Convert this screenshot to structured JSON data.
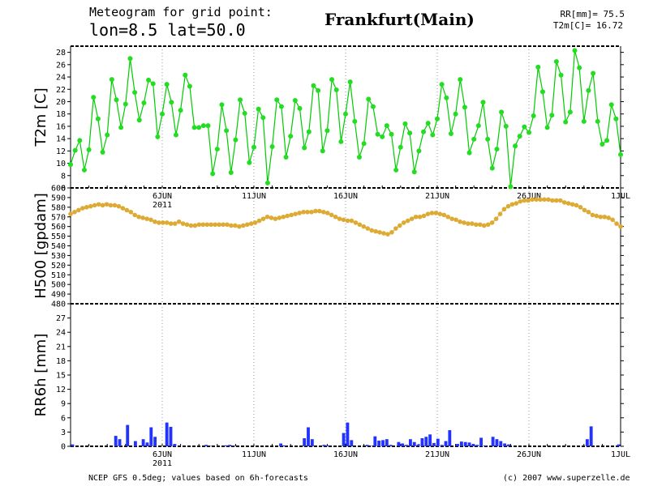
{
  "header": {
    "line1": "Meteogram for grid point:",
    "line2": "lon=8.5 lat=50.0",
    "city": "Frankfurt(Main)",
    "rr_total": "RR[mm]= 75.5",
    "t2m_mean": "T2m[C]= 16.72"
  },
  "footer": {
    "source": "NCEP GFS 0.5deg; values based on 6h-forecasts",
    "copyright": "(c) 2007 www.superzelle.de"
  },
  "x_axis": {
    "labels": [
      "6JUN",
      "11JUN",
      "16JUN",
      "21JUN",
      "26JUN",
      "1JUL"
    ],
    "year": "2011",
    "start_date": "2011-06-01"
  },
  "chart_data": [
    {
      "type": "line",
      "name": "t2m",
      "ylabel": "T2m [C]",
      "ylim": [
        6,
        29
      ],
      "yticks": [
        6,
        8,
        10,
        12,
        14,
        16,
        18,
        20,
        22,
        24,
        26,
        28
      ],
      "color": "#00cc00",
      "marker_color": "#22dd22",
      "values": [
        9.8,
        12.1,
        13.7,
        8.9,
        12.2,
        20.7,
        17.2,
        11.8,
        14.6,
        23.6,
        20.3,
        15.8,
        19.6,
        27,
        21.5,
        17.0,
        19.8,
        23.5,
        22.9,
        14.3,
        18.0,
        22.8,
        19.9,
        14.6,
        18.6,
        24.3,
        22.5,
        15.8,
        15.8,
        16.1,
        16.1,
        8.3,
        12.3,
        19.5,
        15.3,
        8.5,
        13.8,
        20.3,
        18.1,
        10.1,
        12.6,
        18.8,
        17.4,
        6.8,
        12.7,
        20.3,
        19.2,
        11.0,
        14.4,
        20.2,
        18.9,
        12.5,
        15.1,
        22.6,
        21.8,
        12.0,
        15.3,
        23.6,
        21.9,
        13.5,
        18.0,
        23.2,
        16.8,
        11.0,
        13.2,
        20.4,
        19.2,
        14.7,
        14.3,
        16.1,
        14.7,
        8.9,
        12.6,
        16.4,
        14.9,
        8.6,
        12.0,
        15.1,
        16.5,
        14.6,
        17.2,
        22.8,
        20.6,
        14.8,
        18.0,
        23.6,
        19.1,
        11.7,
        13.9,
        16.1,
        19.9,
        13.9,
        9.2,
        12.3,
        18.3,
        16.0,
        6.2,
        12.8,
        14.4,
        15.9,
        15.0,
        17.7,
        25.6,
        21.6,
        15.8,
        17.8,
        26.5,
        24.3,
        16.7,
        18.3,
        28.3,
        25.5,
        16.8,
        21.8,
        24.6,
        16.8,
        13.1,
        13.7,
        19.5,
        17.2,
        11.4
      ]
    },
    {
      "type": "line",
      "name": "h500",
      "ylabel": "H500 [gpdam]",
      "ylim": [
        480,
        600
      ],
      "yticks": [
        480,
        490,
        500,
        510,
        520,
        530,
        540,
        550,
        560,
        570,
        580,
        590,
        600
      ],
      "color": "#ddaa33",
      "values": [
        573,
        575,
        577,
        579,
        580,
        581,
        582,
        583,
        582,
        583,
        582,
        582,
        581,
        579,
        577,
        575,
        572,
        570,
        569,
        568,
        567,
        565,
        564,
        564,
        564,
        563,
        563,
        565,
        563,
        562,
        561,
        561,
        562,
        562,
        562,
        562,
        562,
        562,
        562,
        562,
        561,
        561,
        560,
        561,
        562,
        563,
        564,
        566,
        568,
        570,
        569,
        568,
        569,
        570,
        571,
        572,
        573,
        574,
        575,
        575,
        575,
        576,
        576,
        575,
        574,
        572,
        570,
        568,
        567,
        566,
        566,
        564,
        562,
        560,
        558,
        556,
        555,
        554,
        553,
        552,
        554,
        558,
        561,
        564,
        566,
        568,
        570,
        570,
        571,
        573,
        574,
        574,
        573,
        572,
        570,
        568,
        567,
        565,
        564,
        563,
        563,
        562,
        562,
        561,
        562,
        564,
        568,
        573,
        578,
        581,
        583,
        584,
        586,
        587,
        587,
        588,
        588,
        588,
        588,
        588,
        587,
        587,
        587,
        585,
        584,
        583,
        582,
        580,
        577,
        575,
        572,
        571,
        570,
        570,
        569,
        567,
        563,
        560
      ]
    },
    {
      "type": "bar",
      "name": "rr6h",
      "ylabel": "RR6h [mm]",
      "ylim": [
        0,
        30
      ],
      "yticks": [
        0,
        3,
        6,
        9,
        12,
        15,
        18,
        21,
        24,
        27
      ],
      "color": "#2233ff",
      "values": [
        0.4,
        0,
        0,
        0,
        0,
        0,
        0,
        0,
        0,
        0,
        0,
        2.2,
        1.5,
        0,
        4.5,
        0,
        1.1,
        0,
        1.5,
        0.8,
        4.0,
        2.0,
        0,
        0,
        5.0,
        4.1,
        0.5,
        0,
        0,
        0,
        0,
        0,
        0,
        0,
        0.3,
        0.1,
        0,
        0,
        0,
        0.2,
        0.3,
        0.1,
        0,
        0,
        0,
        0,
        0,
        0,
        0,
        0,
        0,
        0,
        0,
        0.6,
        0.2,
        0,
        0,
        0,
        0,
        1.7,
        4.0,
        1.5,
        0,
        0,
        0.3,
        0.2,
        0,
        0,
        0,
        2.8,
        5.0,
        1.3,
        0,
        0,
        0,
        0.3,
        0.1,
        2.1,
        1.2,
        1.3,
        1.5,
        0.3,
        0,
        0.9,
        0.6,
        0.3,
        1.5,
        0.9,
        0.4,
        1.7,
        2.0,
        2.5,
        0.7,
        1.6,
        0.3,
        1.1,
        3.4,
        0,
        0.5,
        1.0,
        0.9,
        0.8,
        0.5,
        0.3,
        1.8,
        0.2,
        0,
        2.0,
        1.5,
        1.1,
        0.6,
        0.4,
        0,
        0,
        0,
        0,
        0,
        0,
        0,
        0,
        0,
        0,
        0,
        0,
        0,
        0,
        0,
        0,
        0,
        0,
        0,
        1.5,
        4.2,
        0,
        0,
        0,
        0,
        0,
        0,
        0.4
      ]
    }
  ]
}
